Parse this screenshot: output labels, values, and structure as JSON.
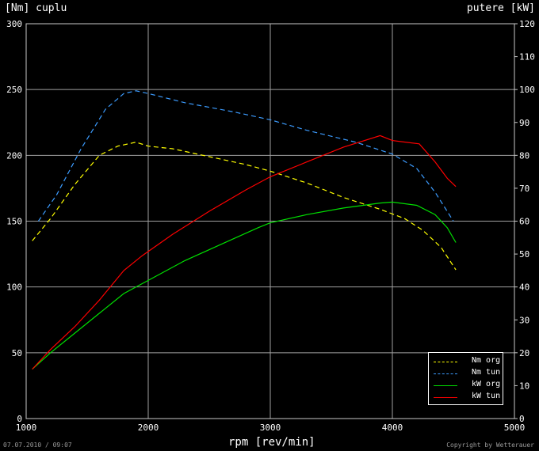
{
  "header": {
    "left_axis_title": "[Nm] cuplu",
    "right_axis_title": "putere [kW]"
  },
  "footer": {
    "x_axis_title": "rpm [rev/min]",
    "date_stamp": "07.07.2010 / 09:07",
    "copyright": "Copyright by Wetterauer"
  },
  "chart_data": {
    "type": "line",
    "title": "",
    "xlabel": "rpm [rev/min]",
    "ylabel": "[Nm] cuplu",
    "y2label": "putere [kW]",
    "xlim": [
      1000,
      5000
    ],
    "ylim": [
      0,
      300
    ],
    "y2lim": [
      0,
      120
    ],
    "x_ticks": [
      1000,
      2000,
      3000,
      4000,
      5000
    ],
    "y_ticks": [
      0,
      50,
      100,
      150,
      200,
      250,
      300
    ],
    "y2_ticks": [
      0,
      10,
      20,
      30,
      40,
      50,
      60,
      70,
      80,
      90,
      100,
      110,
      120
    ],
    "grid": true,
    "legend_position": "bottom-right",
    "series": [
      {
        "name": "Nm org",
        "axis": "left",
        "style": "dashed",
        "color": "#ffff00",
        "x": [
          1050,
          1200,
          1400,
          1600,
          1750,
          1900,
          2000,
          2200,
          2500,
          2800,
          3000,
          3300,
          3600,
          3900,
          4100,
          4250,
          4400,
          4520
        ],
        "y": [
          135,
          152,
          178,
          200,
          207,
          210,
          207,
          205,
          199,
          193,
          188,
          179,
          168,
          159,
          152,
          143,
          130,
          113
        ]
      },
      {
        "name": "Nm tun",
        "axis": "left",
        "style": "dashed",
        "color": "#3c9cff",
        "x": [
          1100,
          1250,
          1450,
          1650,
          1800,
          1900,
          2000,
          2300,
          2700,
          3000,
          3300,
          3700,
          4000,
          4200,
          4350,
          4500
        ],
        "y": [
          150,
          170,
          205,
          235,
          247,
          249,
          247,
          240,
          233,
          227,
          219,
          210,
          201,
          190,
          172,
          150
        ]
      },
      {
        "name": "kW org",
        "axis": "right",
        "style": "solid",
        "color": "#00e000",
        "x": [
          1050,
          1200,
          1400,
          1600,
          1800,
          2000,
          2300,
          2600,
          2900,
          3000,
          3300,
          3600,
          3900,
          4000,
          4200,
          4350,
          4450,
          4520
        ],
        "y": [
          15,
          20,
          26,
          32,
          38,
          42,
          48,
          53,
          58,
          59.5,
          62,
          64,
          65.5,
          65.8,
          64.8,
          62,
          58,
          53.5
        ]
      },
      {
        "name": "kW tun",
        "axis": "right",
        "style": "solid",
        "color": "#ff0000",
        "x": [
          1050,
          1200,
          1400,
          1600,
          1800,
          1950,
          2200,
          2500,
          2800,
          3000,
          3300,
          3600,
          3900,
          4000,
          4220,
          4350,
          4450,
          4520
        ],
        "y": [
          15,
          21,
          28,
          36,
          45,
          49.5,
          56,
          63,
          69.5,
          73.5,
          78,
          82.5,
          86,
          84.5,
          83.5,
          78,
          73,
          70.5
        ]
      }
    ]
  }
}
